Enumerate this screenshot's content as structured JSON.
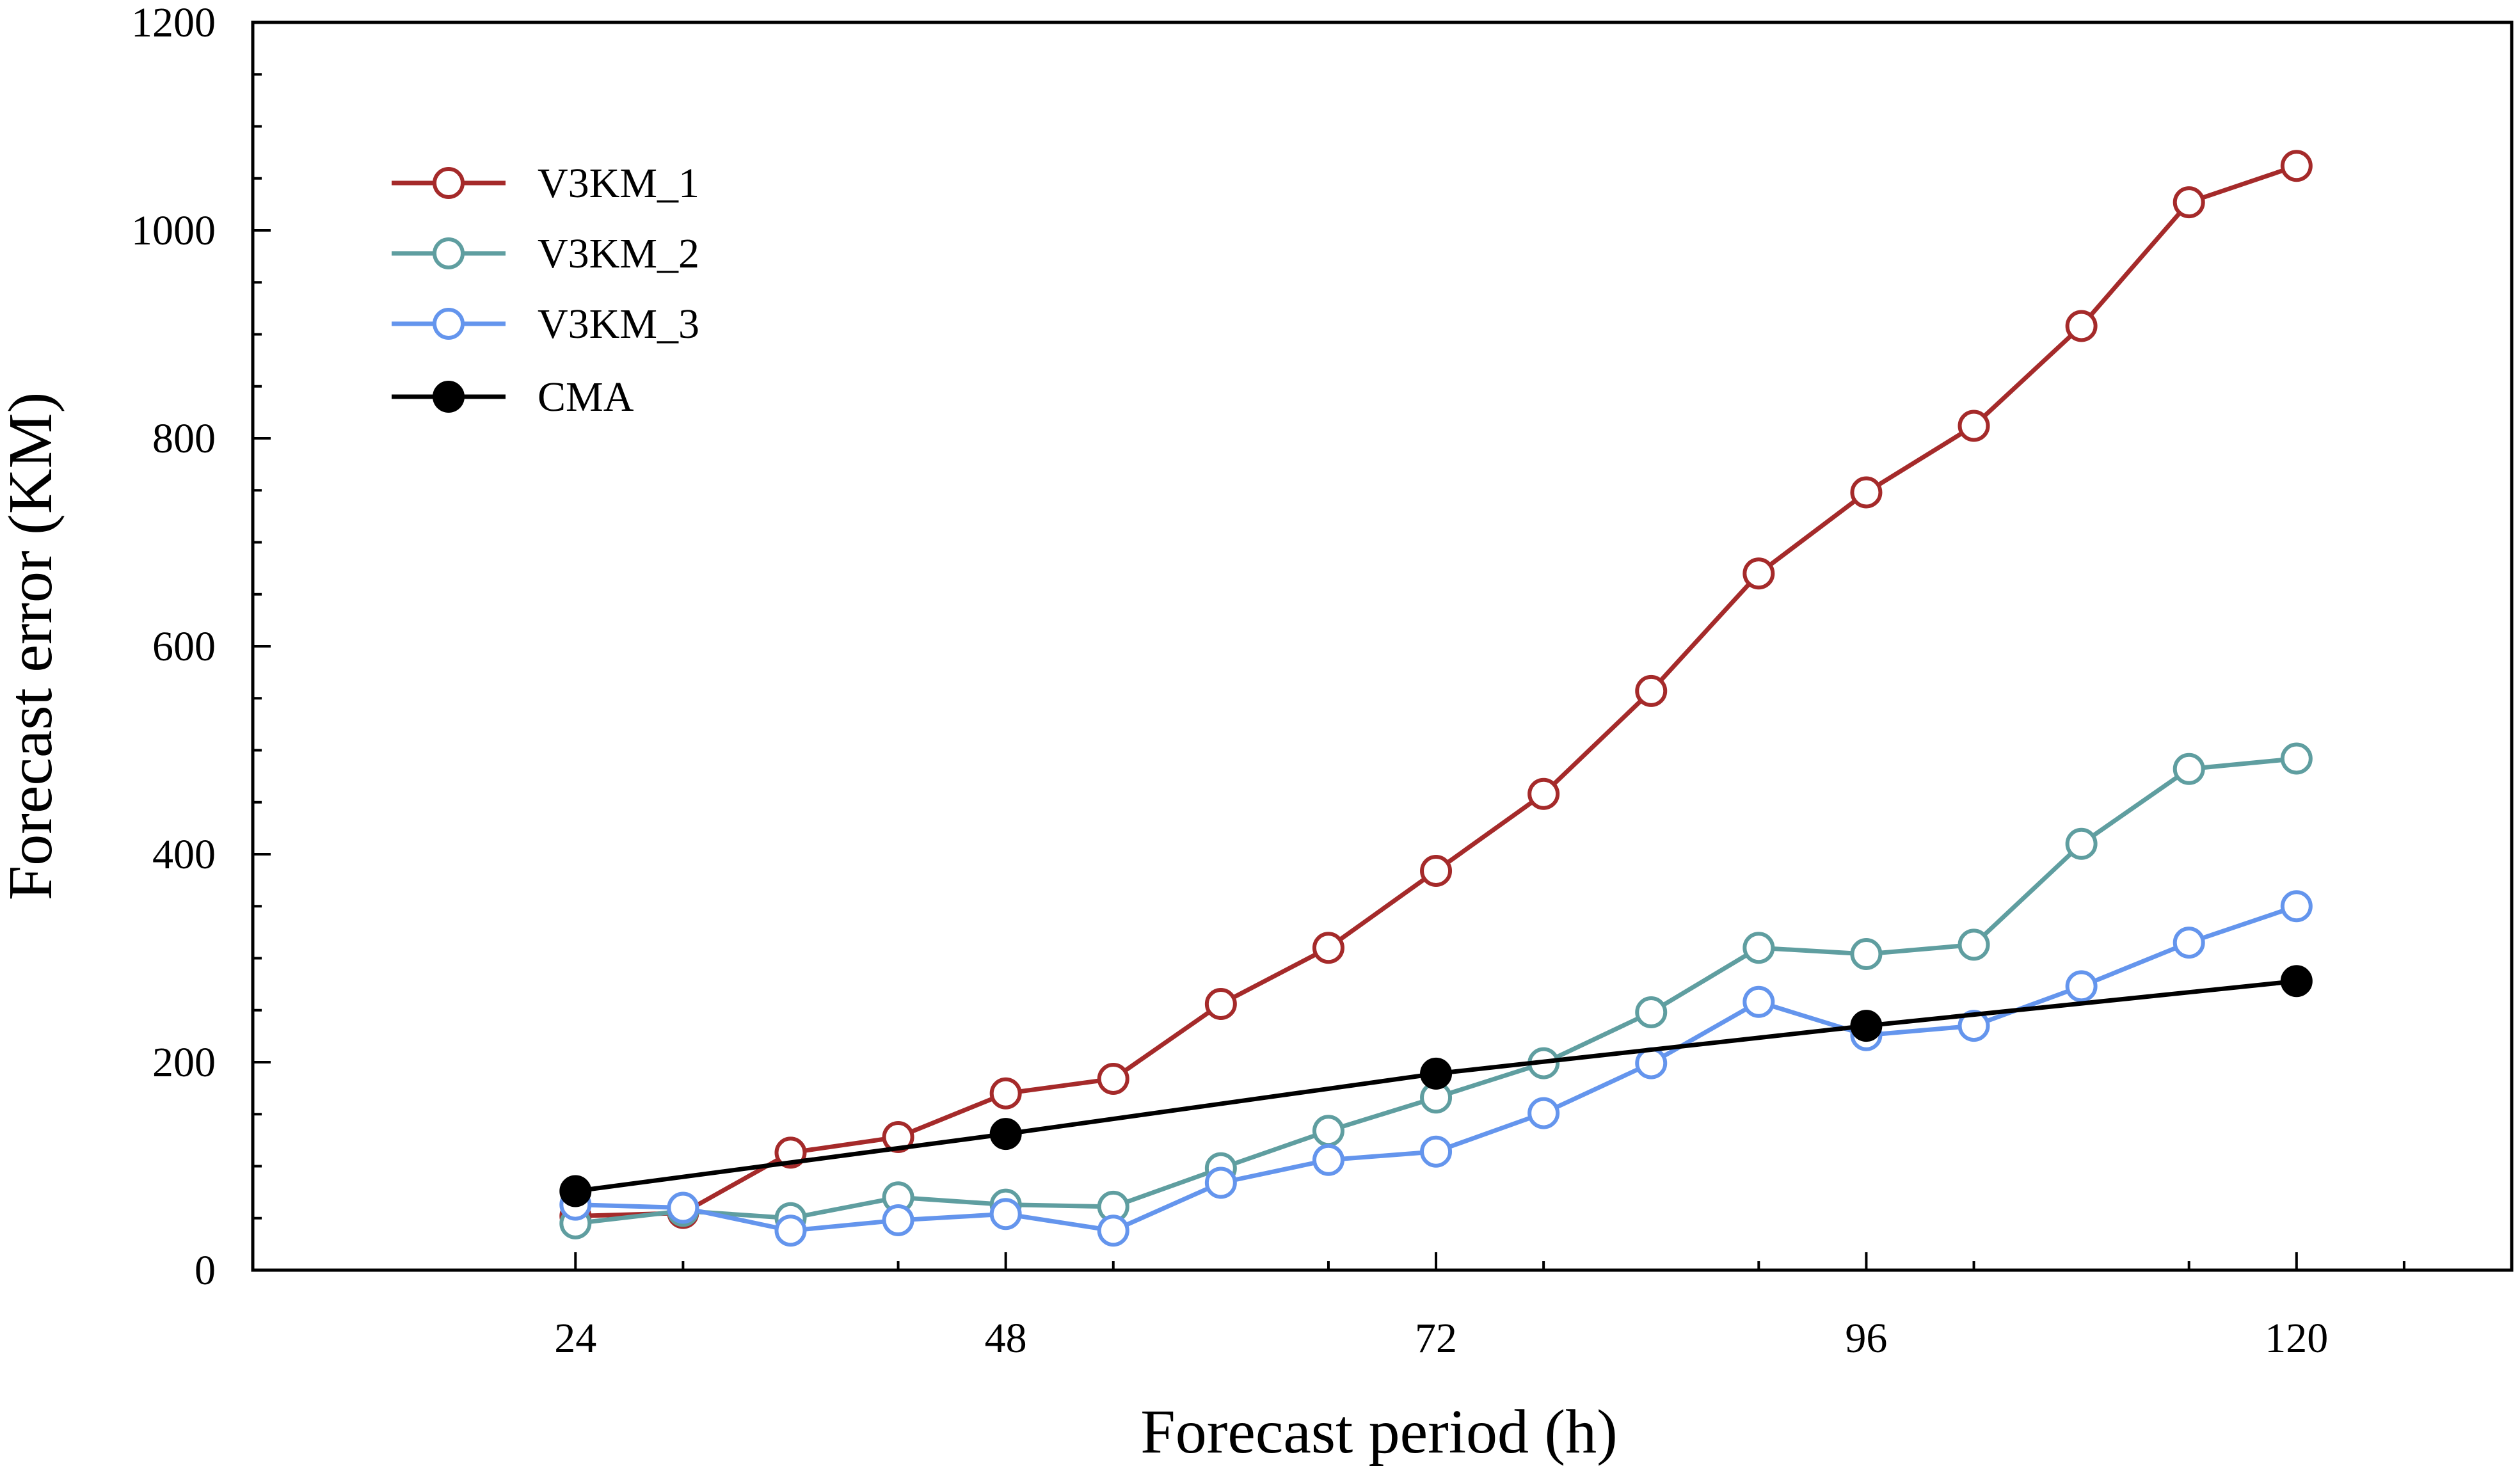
{
  "chart_data": {
    "type": "line",
    "title": "",
    "xlabel": "Forecast period (h)",
    "ylabel": "Forecast error (KM)",
    "xlim": [
      6,
      132
    ],
    "ylim": [
      0,
      1200
    ],
    "xticks": [
      24,
      48,
      72,
      96,
      120
    ],
    "yticks": [
      0,
      200,
      400,
      600,
      800,
      1000,
      1200
    ],
    "grid": false,
    "legend_position": "top-left",
    "series": [
      {
        "name": "V3KM_1",
        "color": "#a52a2a",
        "marker": "open-circle",
        "x": [
          24,
          30,
          36,
          42,
          48,
          54,
          60,
          66,
          72,
          78,
          84,
          90,
          96,
          102,
          108,
          114,
          120
        ],
        "y": [
          52,
          55,
          113,
          128,
          170,
          184,
          256,
          310,
          384,
          458,
          557,
          670,
          748,
          812,
          908,
          1027,
          1062
        ]
      },
      {
        "name": "V3KM_2",
        "color": "#5f9ea0",
        "marker": "open-circle",
        "x": [
          24,
          30,
          36,
          42,
          48,
          54,
          60,
          66,
          72,
          78,
          84,
          90,
          96,
          102,
          108,
          114,
          120
        ],
        "y": [
          45,
          57,
          50,
          70,
          63,
          61,
          98,
          134,
          166,
          199,
          248,
          310,
          304,
          313,
          410,
          482,
          492
        ]
      },
      {
        "name": "V3KM_3",
        "color": "#6495ed",
        "marker": "open-circle",
        "x": [
          24,
          30,
          36,
          42,
          48,
          54,
          60,
          66,
          72,
          78,
          84,
          90,
          96,
          102,
          108,
          114,
          120
        ],
        "y": [
          63,
          60,
          38,
          48,
          54,
          38,
          84,
          106,
          114,
          151,
          199,
          258,
          226,
          235,
          273,
          315,
          350
        ]
      },
      {
        "name": "CMA",
        "color": "#000000",
        "marker": "filled-circle",
        "x": [
          24,
          48,
          72,
          96,
          120
        ],
        "y": [
          76,
          131,
          189,
          235,
          278
        ]
      }
    ]
  }
}
